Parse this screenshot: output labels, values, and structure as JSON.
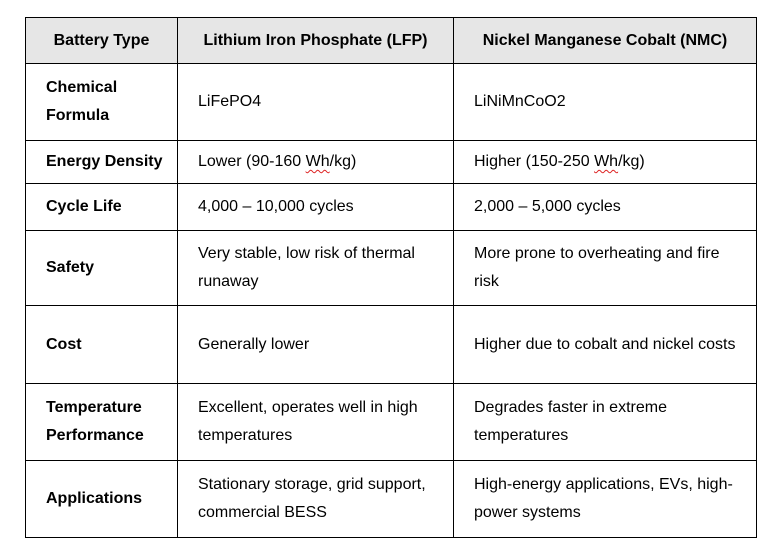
{
  "headers": [
    "Battery Type",
    "Lithium Iron Phosphate (LFP)",
    "Nickel Manganese Cobalt (NMC)"
  ],
  "rows": [
    {
      "label": "Chemical Formula",
      "lfp": "LiFePO4",
      "nmc": "LiNiMnCoO2"
    },
    {
      "label": "Energy Density",
      "lfp_pre": "Lower (90-160 ",
      "lfp_unit": "Wh",
      "lfp_post": "/kg)",
      "nmc_pre": "Higher (150-250 ",
      "nmc_unit": "Wh",
      "nmc_post": "/kg)"
    },
    {
      "label": "Cycle Life",
      "lfp": "4,000 – 10,000 cycles",
      "nmc": "2,000 – 5,000 cycles"
    },
    {
      "label": "Safety",
      "lfp": "Very stable, low risk of thermal runaway",
      "nmc": "More prone to overheating and fire risk"
    },
    {
      "label": "Cost",
      "lfp": "Generally lower",
      "nmc": "Higher due to cobalt and nickel costs"
    },
    {
      "label": "Temperature Performance",
      "lfp": "Excellent, operates well in high temperatures",
      "nmc": "Degrades faster in extreme temperatures"
    },
    {
      "label": "Applications",
      "lfp": "Stationary storage, grid support, commercial BESS",
      "nmc": "High-energy applications, EVs, high-power systems"
    }
  ]
}
